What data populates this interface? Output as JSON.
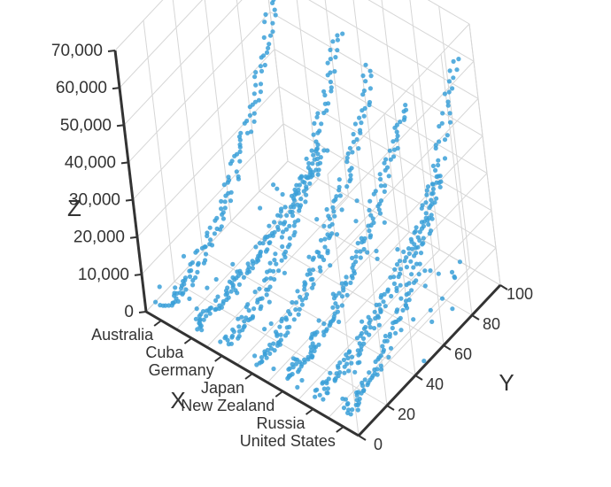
{
  "chart_data": {
    "type": "scatter",
    "projection": "3d",
    "title": "",
    "color": "#3ba0d8",
    "x_axis": {
      "name": "X",
      "categories": [
        "Australia",
        "Cuba",
        "Germany",
        "Japan",
        "New Zealand",
        "Russia",
        "United States"
      ]
    },
    "y_axis": {
      "name": "Y",
      "range": [
        0,
        100
      ],
      "ticks": [
        "0",
        "20",
        "40",
        "60",
        "80",
        "100"
      ]
    },
    "z_axis": {
      "name": "Z",
      "range": [
        0,
        70000
      ],
      "ticks": [
        "0",
        "10,000",
        "20,000",
        "30,000",
        "40,000",
        "50,000",
        "60,000",
        "70,000"
      ]
    },
    "grid": true,
    "legend": "none",
    "series": [
      {
        "category": "Australia",
        "z_start": 2000,
        "z_end": 52000
      },
      {
        "category": "Cuba",
        "z_start": 1500,
        "z_end": 12000
      },
      {
        "category": "Germany",
        "z_start": 2000,
        "z_end": 48000
      },
      {
        "category": "Japan",
        "z_start": 1500,
        "z_end": 43000
      },
      {
        "category": "New Zealand",
        "z_start": 2500,
        "z_end": 38000
      },
      {
        "category": "Russia",
        "z_start": 2000,
        "z_end": 24000
      },
      {
        "category": "United States",
        "z_start": 3000,
        "z_end": 60000
      }
    ]
  }
}
